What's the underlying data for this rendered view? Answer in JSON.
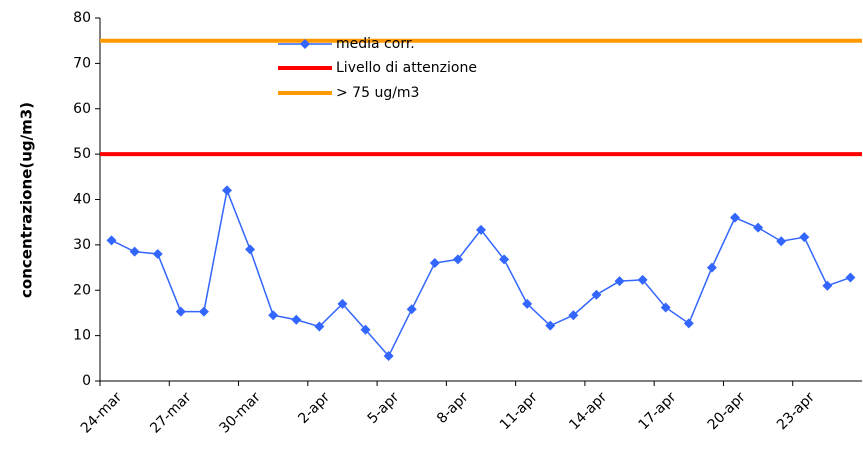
{
  "chart_data": {
    "type": "line",
    "y_label": "concentrazione(ug/m3)",
    "categories": [
      "24-mar",
      null,
      null,
      "27-mar",
      null,
      null,
      "30-mar",
      null,
      null,
      "2-apr",
      null,
      null,
      "5-apr",
      null,
      null,
      "8-apr",
      null,
      null,
      "11-apr",
      null,
      null,
      "14-apr",
      null,
      null,
      "17-apr",
      null,
      null,
      "20-apr",
      null,
      null,
      "23-apr",
      null,
      null
    ],
    "series": [
      {
        "name": "media corr.",
        "color": "#3366ff",
        "marker": "diamond",
        "values": [
          31,
          28.5,
          28,
          15.3,
          15.3,
          42,
          29,
          14.5,
          13.5,
          12,
          17,
          11.3,
          5.5,
          15.8,
          26,
          26.8,
          33.3,
          26.8,
          17,
          12.2,
          14.5,
          19,
          22,
          22.3,
          16.2,
          12.7,
          25,
          36,
          33.8,
          30.8,
          31.7,
          21,
          22.8
        ]
      },
      {
        "name": "Livello di attenzione",
        "color": "#ff0000",
        "values": [
          50,
          50,
          50,
          50,
          50,
          50,
          50,
          50,
          50,
          50,
          50,
          50,
          50,
          50,
          50,
          50,
          50,
          50,
          50,
          50,
          50,
          50,
          50,
          50,
          50,
          50,
          50,
          50,
          50,
          50,
          50,
          50,
          50
        ]
      },
      {
        "name": "> 75 ug/m3",
        "color": "#ff9900",
        "values": [
          75,
          75,
          75,
          75,
          75,
          75,
          75,
          75,
          75,
          75,
          75,
          75,
          75,
          75,
          75,
          75,
          75,
          75,
          75,
          75,
          75,
          75,
          75,
          75,
          75,
          75,
          75,
          75,
          75,
          75,
          75,
          75,
          75
        ]
      }
    ],
    "ylim": [
      0,
      80
    ],
    "yticks": [
      0,
      10,
      20,
      30,
      40,
      50,
      60,
      70,
      80
    ],
    "grid": false,
    "legend": "top"
  }
}
